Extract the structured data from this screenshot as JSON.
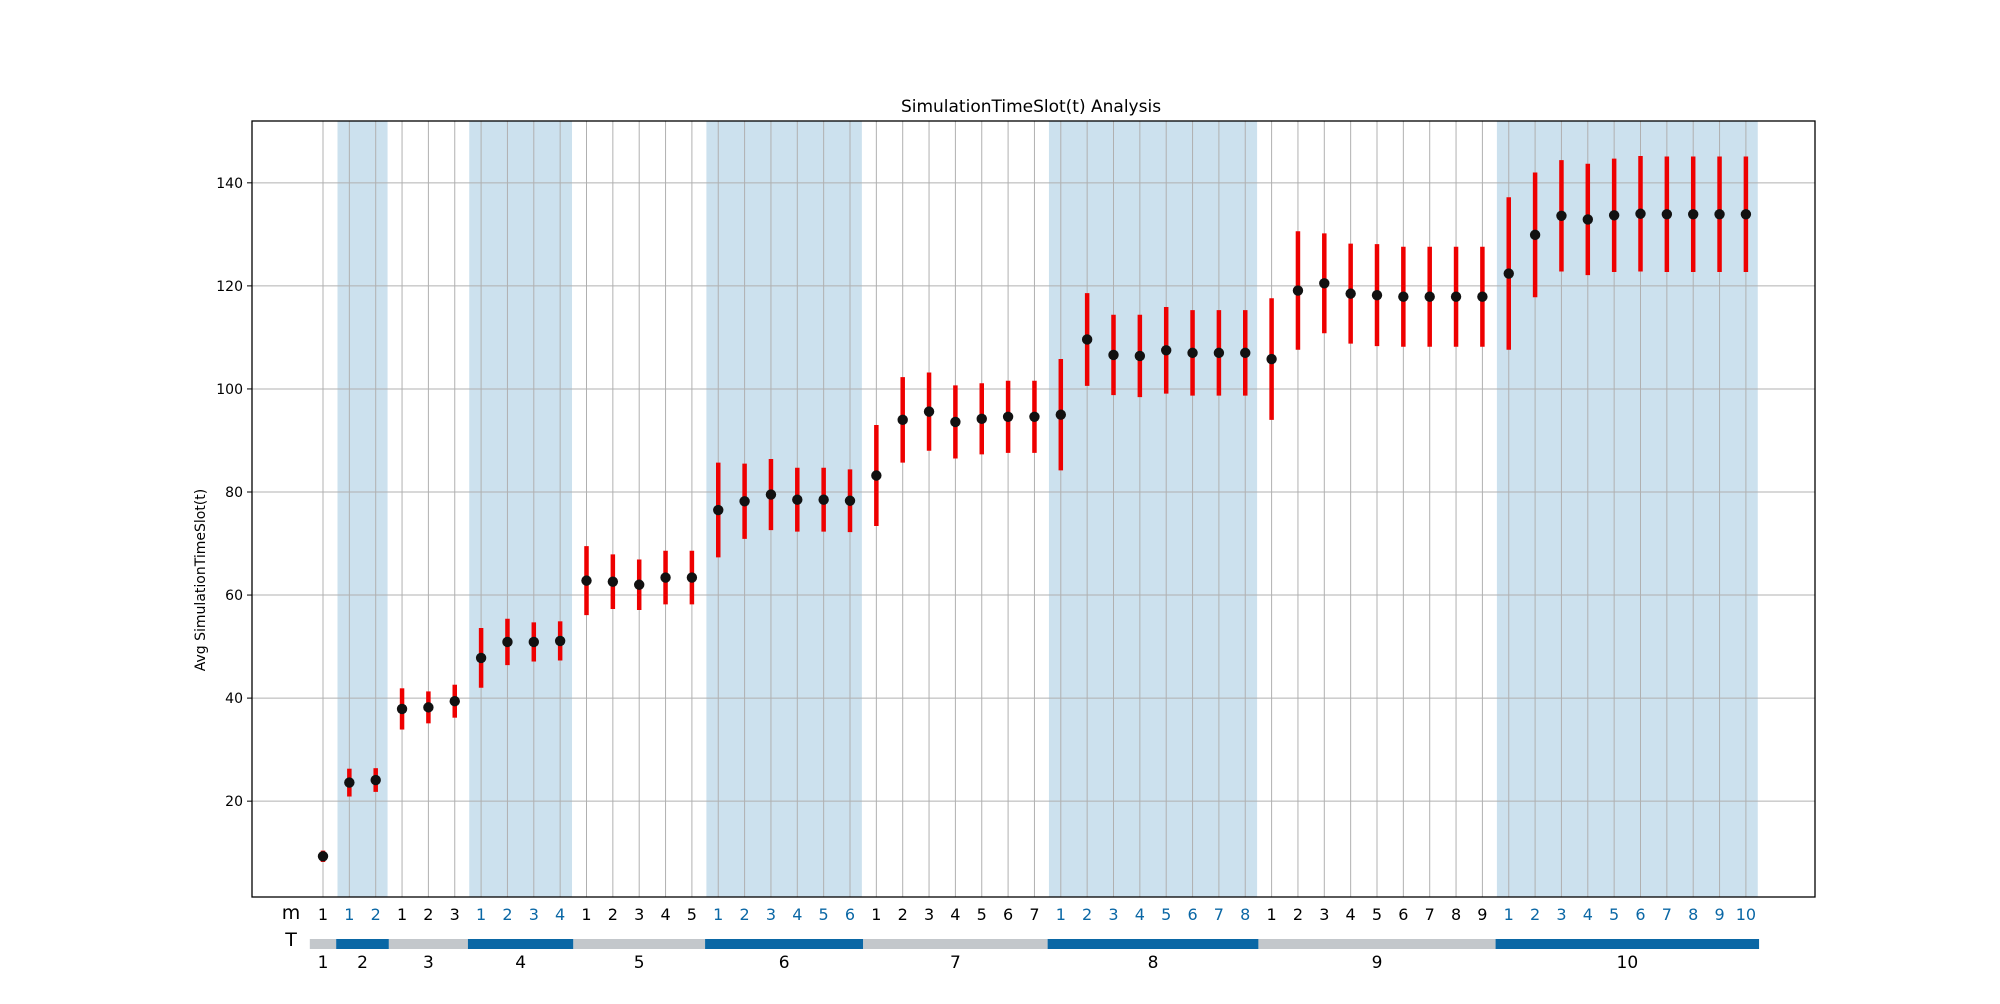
{
  "chart_data": {
    "type": "scatter",
    "title": "SimulationTimeSlot(t) Analysis",
    "xlabel": "",
    "ylabel": "Avg SimulationTimeSlot(t)",
    "ylim": [
      1.4,
      152
    ],
    "yticks": [
      20,
      40,
      60,
      80,
      100,
      120,
      140
    ],
    "grid": true,
    "row_labels": {
      "m": "m",
      "T": "T"
    },
    "colors": {
      "error_bar": "#ee0000",
      "marker": "#111111",
      "shade": "#cce1ee",
      "band_dark": "#0a67a5",
      "band_light": "#c3c7cb",
      "m_label_blue": "#0a67a5",
      "grid": "#b0b0b0"
    },
    "groups": [
      {
        "T": 1,
        "label": "1",
        "points": [
          {
            "m": "1",
            "y": 9.3,
            "lo": 8.2,
            "hi": 10.4
          }
        ]
      },
      {
        "T": 2,
        "label": "2",
        "points": [
          {
            "m": "1",
            "y": 23.6,
            "lo": 20.9,
            "hi": 26.3
          },
          {
            "m": "2",
            "y": 24.1,
            "lo": 21.8,
            "hi": 26.4
          }
        ]
      },
      {
        "T": 3,
        "label": "3",
        "points": [
          {
            "m": "1",
            "y": 37.9,
            "lo": 33.9,
            "hi": 41.9
          },
          {
            "m": "2",
            "y": 38.2,
            "lo": 35.1,
            "hi": 41.3
          },
          {
            "m": "3",
            "y": 39.4,
            "lo": 36.2,
            "hi": 42.6
          }
        ]
      },
      {
        "T": 4,
        "label": "4",
        "points": [
          {
            "m": "1",
            "y": 47.8,
            "lo": 42.0,
            "hi": 53.6
          },
          {
            "m": "2",
            "y": 50.9,
            "lo": 46.4,
            "hi": 55.4
          },
          {
            "m": "3",
            "y": 50.9,
            "lo": 47.1,
            "hi": 54.7
          },
          {
            "m": "4",
            "y": 51.1,
            "lo": 47.3,
            "hi": 54.9
          }
        ]
      },
      {
        "T": 5,
        "label": "5",
        "points": [
          {
            "m": "1",
            "y": 62.8,
            "lo": 56.1,
            "hi": 69.5
          },
          {
            "m": "2",
            "y": 62.6,
            "lo": 57.3,
            "hi": 67.9
          },
          {
            "m": "3",
            "y": 62.0,
            "lo": 57.1,
            "hi": 66.9
          },
          {
            "m": "4",
            "y": 63.4,
            "lo": 58.2,
            "hi": 68.6
          },
          {
            "m": "5",
            "y": 63.4,
            "lo": 58.2,
            "hi": 68.6
          }
        ]
      },
      {
        "T": 6,
        "label": "6",
        "points": [
          {
            "m": "1",
            "y": 76.5,
            "lo": 67.3,
            "hi": 85.7
          },
          {
            "m": "2",
            "y": 78.2,
            "lo": 70.9,
            "hi": 85.5
          },
          {
            "m": "3",
            "y": 79.5,
            "lo": 72.6,
            "hi": 86.4
          },
          {
            "m": "4",
            "y": 78.5,
            "lo": 72.3,
            "hi": 84.7
          },
          {
            "m": "5",
            "y": 78.5,
            "lo": 72.3,
            "hi": 84.7
          },
          {
            "m": "6",
            "y": 78.3,
            "lo": 72.2,
            "hi": 84.4
          }
        ]
      },
      {
        "T": 7,
        "label": "7",
        "points": [
          {
            "m": "1",
            "y": 83.2,
            "lo": 73.4,
            "hi": 93.0
          },
          {
            "m": "2",
            "y": 94.0,
            "lo": 85.7,
            "hi": 102.3
          },
          {
            "m": "3",
            "y": 95.6,
            "lo": 88.0,
            "hi": 103.2
          },
          {
            "m": "4",
            "y": 93.6,
            "lo": 86.5,
            "hi": 100.7
          },
          {
            "m": "5",
            "y": 94.2,
            "lo": 87.3,
            "hi": 101.1
          },
          {
            "m": "6",
            "y": 94.6,
            "lo": 87.6,
            "hi": 101.6
          },
          {
            "m": "7",
            "y": 94.6,
            "lo": 87.6,
            "hi": 101.6
          }
        ]
      },
      {
        "T": 8,
        "label": "8",
        "points": [
          {
            "m": "1",
            "y": 95.0,
            "lo": 84.2,
            "hi": 105.8
          },
          {
            "m": "2",
            "y": 109.6,
            "lo": 100.6,
            "hi": 118.6
          },
          {
            "m": "3",
            "y": 106.6,
            "lo": 98.8,
            "hi": 114.4
          },
          {
            "m": "4",
            "y": 106.4,
            "lo": 98.4,
            "hi": 114.4
          },
          {
            "m": "5",
            "y": 107.5,
            "lo": 99.1,
            "hi": 115.9
          },
          {
            "m": "6",
            "y": 107.0,
            "lo": 98.7,
            "hi": 115.3
          },
          {
            "m": "7",
            "y": 107.0,
            "lo": 98.7,
            "hi": 115.3
          },
          {
            "m": "8",
            "y": 107.0,
            "lo": 98.7,
            "hi": 115.3
          }
        ]
      },
      {
        "T": 9,
        "label": "9",
        "points": [
          {
            "m": "1",
            "y": 105.8,
            "lo": 94.0,
            "hi": 117.6
          },
          {
            "m": "2",
            "y": 119.1,
            "lo": 107.6,
            "hi": 130.6
          },
          {
            "m": "3",
            "y": 120.5,
            "lo": 110.8,
            "hi": 130.2
          },
          {
            "m": "4",
            "y": 118.5,
            "lo": 108.8,
            "hi": 128.2
          },
          {
            "m": "5",
            "y": 118.2,
            "lo": 108.3,
            "hi": 128.1
          },
          {
            "m": "6",
            "y": 117.9,
            "lo": 108.2,
            "hi": 127.6
          },
          {
            "m": "7",
            "y": 117.9,
            "lo": 108.2,
            "hi": 127.6
          },
          {
            "m": "8",
            "y": 117.9,
            "lo": 108.2,
            "hi": 127.6
          },
          {
            "m": "9",
            "y": 117.9,
            "lo": 108.2,
            "hi": 127.6
          }
        ]
      },
      {
        "T": 10,
        "label": "10",
        "points": [
          {
            "m": "1",
            "y": 122.4,
            "lo": 107.6,
            "hi": 137.2
          },
          {
            "m": "2",
            "y": 129.9,
            "lo": 117.8,
            "hi": 142.0
          },
          {
            "m": "3",
            "y": 133.6,
            "lo": 122.8,
            "hi": 144.4
          },
          {
            "m": "4",
            "y": 132.9,
            "lo": 122.1,
            "hi": 143.7
          },
          {
            "m": "5",
            "y": 133.7,
            "lo": 122.7,
            "hi": 144.7
          },
          {
            "m": "6",
            "y": 134.0,
            "lo": 122.8,
            "hi": 145.2
          },
          {
            "m": "7",
            "y": 133.9,
            "lo": 122.7,
            "hi": 145.1
          },
          {
            "m": "8",
            "y": 133.9,
            "lo": 122.7,
            "hi": 145.1
          },
          {
            "m": "9",
            "y": 133.9,
            "lo": 122.7,
            "hi": 145.1
          },
          {
            "m": "10",
            "y": 133.9,
            "lo": 122.7,
            "hi": 145.1
          }
        ]
      }
    ]
  }
}
